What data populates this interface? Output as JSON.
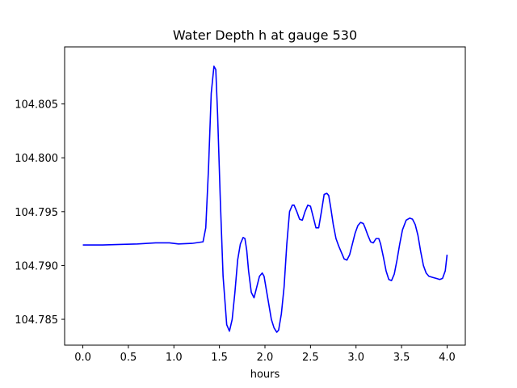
{
  "chart_data": {
    "type": "line",
    "title": "Water Depth h at gauge 530",
    "xlabel": "hours",
    "ylabel": "",
    "xlim": [
      -0.2,
      4.2
    ],
    "ylim": [
      104.7826,
      104.8103
    ],
    "xticks": [
      0.0,
      0.5,
      1.0,
      1.5,
      2.0,
      2.5,
      3.0,
      3.5,
      4.0
    ],
    "xtick_labels": [
      "0.0",
      "0.5",
      "1.0",
      "1.5",
      "2.0",
      "2.5",
      "3.0",
      "3.5",
      "4.0"
    ],
    "yticks": [
      104.785,
      104.79,
      104.795,
      104.8,
      104.805
    ],
    "ytick_labels": [
      "104.785",
      "104.790",
      "104.795",
      "104.800",
      "104.805"
    ],
    "grid": false,
    "colors": {
      "line": "#0000ff",
      "axes": "#000000",
      "background": "#ffffff"
    },
    "series": [
      {
        "x": [
          0.0,
          0.2,
          0.4,
          0.6,
          0.8,
          0.95,
          1.05,
          1.2,
          1.32,
          1.35,
          1.38,
          1.41,
          1.44,
          1.46,
          1.48,
          1.51,
          1.54,
          1.58,
          1.61,
          1.64,
          1.67,
          1.7,
          1.73,
          1.76,
          1.78,
          1.8,
          1.82,
          1.85,
          1.88,
          1.91,
          1.94,
          1.97,
          1.99,
          2.01,
          2.04,
          2.07,
          2.1,
          2.13,
          2.15,
          2.18,
          2.21,
          2.24,
          2.27,
          2.3,
          2.32,
          2.35,
          2.38,
          2.41,
          2.44,
          2.47,
          2.5,
          2.53,
          2.56,
          2.59,
          2.62,
          2.65,
          2.68,
          2.7,
          2.72,
          2.75,
          2.78,
          2.81,
          2.84,
          2.87,
          2.9,
          2.93,
          2.96,
          2.99,
          3.02,
          3.05,
          3.08,
          3.1,
          3.13,
          3.16,
          3.19,
          3.22,
          3.25,
          3.27,
          3.3,
          3.33,
          3.36,
          3.39,
          3.42,
          3.45,
          3.48,
          3.51,
          3.55,
          3.59,
          3.62,
          3.65,
          3.68,
          3.71,
          3.74,
          3.77,
          3.8,
          3.84,
          3.88,
          3.92,
          3.95,
          3.98,
          4.0
        ],
        "y": [
          104.7919,
          104.7919,
          104.79195,
          104.792,
          104.7921,
          104.7921,
          104.792,
          104.79205,
          104.7922,
          104.7935,
          104.799,
          104.806,
          104.8085,
          104.8082,
          104.804,
          104.796,
          104.789,
          104.7845,
          104.7839,
          104.785,
          104.7875,
          104.7905,
          104.792,
          104.7926,
          104.7925,
          104.7914,
          104.7895,
          104.7875,
          104.787,
          104.788,
          104.789,
          104.7893,
          104.789,
          104.788,
          104.7865,
          104.785,
          104.7842,
          104.7838,
          104.784,
          104.7855,
          104.788,
          104.792,
          104.795,
          104.7956,
          104.7956,
          104.795,
          104.7943,
          104.7942,
          104.795,
          104.7956,
          104.7955,
          104.7945,
          104.7935,
          104.7935,
          104.795,
          104.7966,
          104.7967,
          104.7965,
          104.7955,
          104.7938,
          104.7925,
          104.7918,
          104.7912,
          104.7906,
          104.7905,
          104.791,
          104.792,
          104.793,
          104.7937,
          104.794,
          104.7939,
          104.7935,
          104.7928,
          104.7922,
          104.7921,
          104.7925,
          104.7925,
          104.792,
          104.7908,
          104.7895,
          104.7887,
          104.7886,
          104.7892,
          104.7905,
          104.792,
          104.7933,
          104.7942,
          104.7944,
          104.7943,
          104.7938,
          104.7928,
          104.7913,
          104.79,
          104.7893,
          104.789,
          104.7889,
          104.7888,
          104.7887,
          104.7888,
          104.7895,
          104.791
        ]
      }
    ]
  }
}
